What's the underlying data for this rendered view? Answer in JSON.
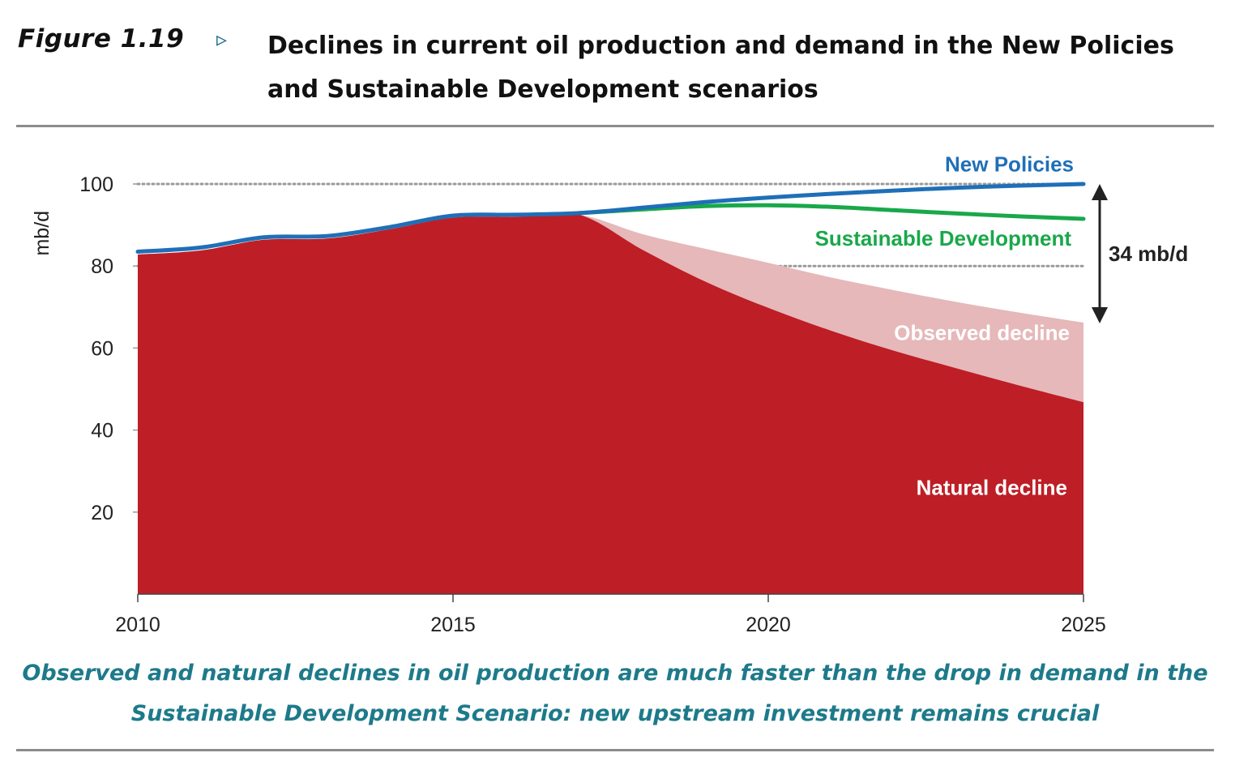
{
  "figure": {
    "number": "Figure 1.19",
    "marker": "▹",
    "title": "Declines in current oil production and demand in the New Policies and Sustainable Development scenarios",
    "caption": "Observed and natural declines in oil production are much faster than the drop in demand in the Sustainable Development Scenario: new upstream investment remains crucial"
  },
  "colors": {
    "new_policies": "#1f6fb8",
    "sustainable_development": "#19a84a",
    "observed_decline": "#e6b8b9",
    "natural_decline": "#be1e26",
    "rule": "#8c8c8c",
    "caption": "#1d7a8a"
  },
  "chart_data": {
    "type": "area",
    "ylabel": "mb/d",
    "xlim": [
      2010,
      2025
    ],
    "ylim": [
      0,
      100
    ],
    "x_ticks": [
      "2010",
      "2015",
      "2020",
      "2025"
    ],
    "y_ticks": [
      "20",
      "40",
      "60",
      "80",
      "100"
    ],
    "gridlines_dotted": [
      80,
      100
    ],
    "annotation": "34 mb/d",
    "annotation_range": [
      66,
      100
    ],
    "series": [
      {
        "name": "New Policies",
        "kind": "line",
        "x": [
          2010,
          2011,
          2012,
          2013,
          2014,
          2015,
          2016,
          2017,
          2018,
          2019,
          2020,
          2021,
          2022,
          2023,
          2024,
          2025
        ],
        "y": [
          83.5,
          84.5,
          87,
          87.3,
          89.5,
          92.3,
          92.5,
          92.9,
          94.2,
          95.6,
          96.7,
          97.6,
          98.4,
          99.1,
          99.6,
          100
        ]
      },
      {
        "name": "Sustainable Development",
        "kind": "line",
        "x": [
          2017,
          2018,
          2019,
          2020,
          2021,
          2022,
          2023,
          2024,
          2025
        ],
        "y": [
          92.9,
          93.8,
          94.6,
          94.8,
          94.4,
          93.6,
          92.8,
          92.1,
          91.5
        ]
      },
      {
        "name": "Observed decline",
        "kind": "area",
        "x": [
          2010,
          2011,
          2012,
          2013,
          2014,
          2015,
          2016,
          2017,
          2018,
          2019,
          2020,
          2021,
          2022,
          2023,
          2024,
          2025
        ],
        "y": [
          82.8,
          83.8,
          86.4,
          86.7,
          89,
          91.8,
          92,
          92.5,
          87.8,
          84.2,
          80.8,
          77.2,
          74.1,
          71.2,
          68.6,
          66.2
        ]
      },
      {
        "name": "Natural decline",
        "kind": "area",
        "x": [
          2010,
          2011,
          2012,
          2013,
          2014,
          2015,
          2016,
          2017,
          2018,
          2019,
          2020,
          2021,
          2022,
          2023,
          2024,
          2025
        ],
        "y": [
          82.8,
          83.8,
          86.4,
          86.7,
          89,
          91.8,
          92,
          92.5,
          84,
          76.2,
          69.8,
          64.2,
          59.3,
          55,
          50.8,
          46.8
        ]
      }
    ]
  }
}
